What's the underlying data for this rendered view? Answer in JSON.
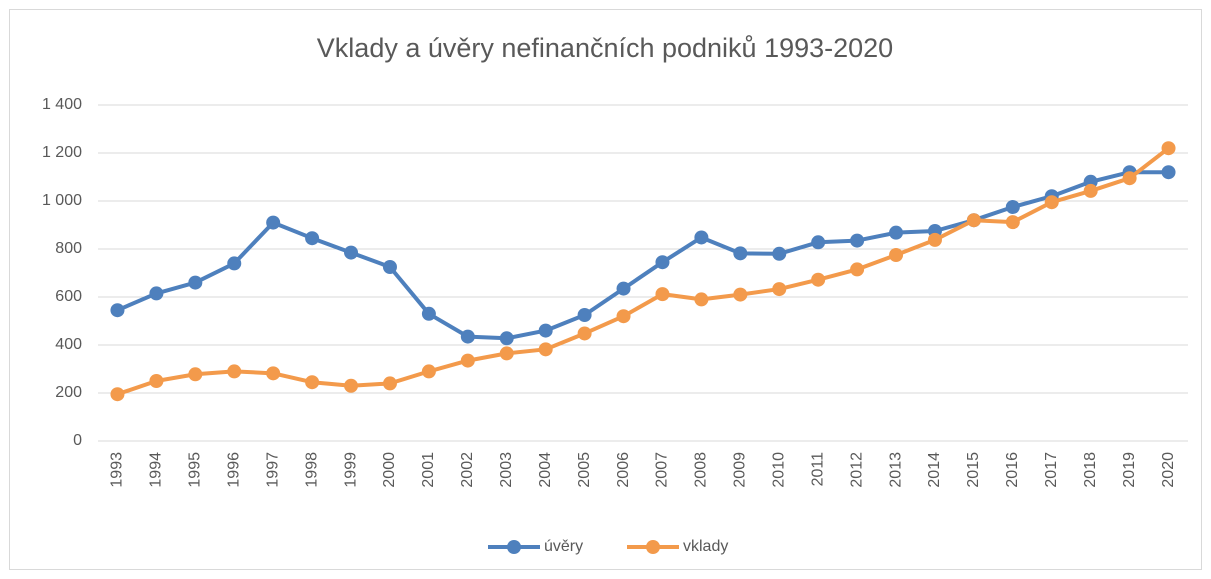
{
  "chart_data": {
    "type": "line",
    "title": "Vklady a úvěry nefinančních podniků 1993-2020",
    "categories": [
      "1993",
      "1994",
      "1995",
      "1996",
      "1997",
      "1998",
      "1999",
      "2000",
      "2001",
      "2002",
      "2003",
      "2004",
      "2005",
      "2006",
      "2007",
      "2008",
      "2009",
      "2010",
      "2011",
      "2012",
      "2013",
      "2014",
      "2015",
      "2016",
      "2017",
      "2018",
      "2019",
      "2020"
    ],
    "series": [
      {
        "name": "úvěry",
        "color": "#4e80bd",
        "values": [
          545,
          615,
          660,
          740,
          910,
          845,
          785,
          725,
          530,
          435,
          428,
          460,
          525,
          635,
          745,
          848,
          782,
          780,
          828,
          835,
          868,
          875,
          920,
          975,
          1020,
          1080,
          1120,
          1120
        ]
      },
      {
        "name": "vklady",
        "color": "#f39a4b",
        "values": [
          195,
          250,
          278,
          290,
          282,
          245,
          230,
          240,
          290,
          335,
          365,
          382,
          448,
          520,
          612,
          590,
          610,
          633,
          672,
          715,
          775,
          838,
          920,
          912,
          995,
          1042,
          1095,
          1220
        ]
      }
    ],
    "ylim": [
      0,
      1400
    ],
    "yticks": [
      0,
      200,
      400,
      600,
      800,
      {
        "value": 1000,
        "label": "1 000"
      },
      {
        "value": 1200,
        "label": "1 200"
      },
      {
        "value": 1400,
        "label": "1 400"
      }
    ],
    "grid": true,
    "legend": "bottom"
  }
}
